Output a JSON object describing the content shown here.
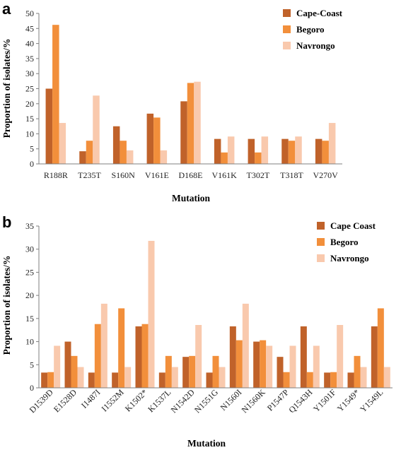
{
  "chart_data": [
    {
      "type": "bar",
      "panel_label": "a",
      "categories": [
        "R188R",
        "T235T",
        "S160N",
        "V161E",
        "D168E",
        "V161K",
        "T302T",
        "T318T",
        "V270V"
      ],
      "series": [
        {
          "name": "Cape-Coast",
          "color": "#c0622a",
          "values": [
            25.0,
            4.2,
            12.5,
            16.7,
            20.8,
            8.3,
            8.3,
            8.3,
            8.3
          ]
        },
        {
          "name": "Begoro",
          "color": "#f28f3b",
          "values": [
            46.2,
            7.7,
            7.7,
            15.4,
            26.9,
            3.8,
            3.8,
            7.7,
            7.7
          ]
        },
        {
          "name": "Navrongo",
          "color": "#f9c9ad",
          "values": [
            13.6,
            22.7,
            4.5,
            4.5,
            27.3,
            9.1,
            9.1,
            9.1,
            13.6
          ]
        }
      ],
      "ylabel": "Proportion of isolates/%",
      "xlabel": "Mutation",
      "ylim": [
        0,
        50
      ],
      "yticks": [
        0,
        5,
        10,
        15,
        20,
        25,
        30,
        35,
        40,
        45,
        50
      ],
      "grid": false,
      "legend": "top-right"
    },
    {
      "type": "bar",
      "panel_label": "b",
      "categories": [
        "D1539D",
        "E1528D",
        "I1487I",
        "I1552M",
        "K1502*",
        "K1537L",
        "N1542D",
        "N1551G",
        "N1560I",
        "N1560K",
        "P1547P",
        "Q1543H",
        "Y1501F",
        "Y1549*",
        "Y1549L"
      ],
      "series": [
        {
          "name": "Cape Coast",
          "color": "#c0622a",
          "values": [
            3.3,
            10.0,
            3.3,
            3.3,
            13.3,
            3.3,
            6.7,
            3.3,
            13.3,
            10.0,
            6.7,
            13.3,
            3.3,
            3.3,
            13.3
          ]
        },
        {
          "name": "Begoro",
          "color": "#f28f3b",
          "values": [
            3.4,
            6.9,
            13.8,
            17.2,
            13.8,
            6.9,
            6.9,
            6.9,
            10.3,
            10.3,
            3.4,
            3.4,
            3.4,
            6.9,
            17.2
          ]
        },
        {
          "name": "Navrongo",
          "color": "#f9c9ad",
          "values": [
            9.1,
            4.5,
            18.2,
            4.5,
            31.8,
            4.5,
            13.6,
            4.5,
            18.2,
            9.1,
            9.1,
            9.1,
            13.6,
            4.5,
            4.5
          ]
        }
      ],
      "ylabel": "Proportion of isolates/%",
      "xlabel": "Mutation",
      "ylim": [
        0,
        35
      ],
      "yticks": [
        0,
        5,
        10,
        15,
        20,
        25,
        30,
        35
      ],
      "grid": false,
      "legend": "top-right"
    }
  ]
}
